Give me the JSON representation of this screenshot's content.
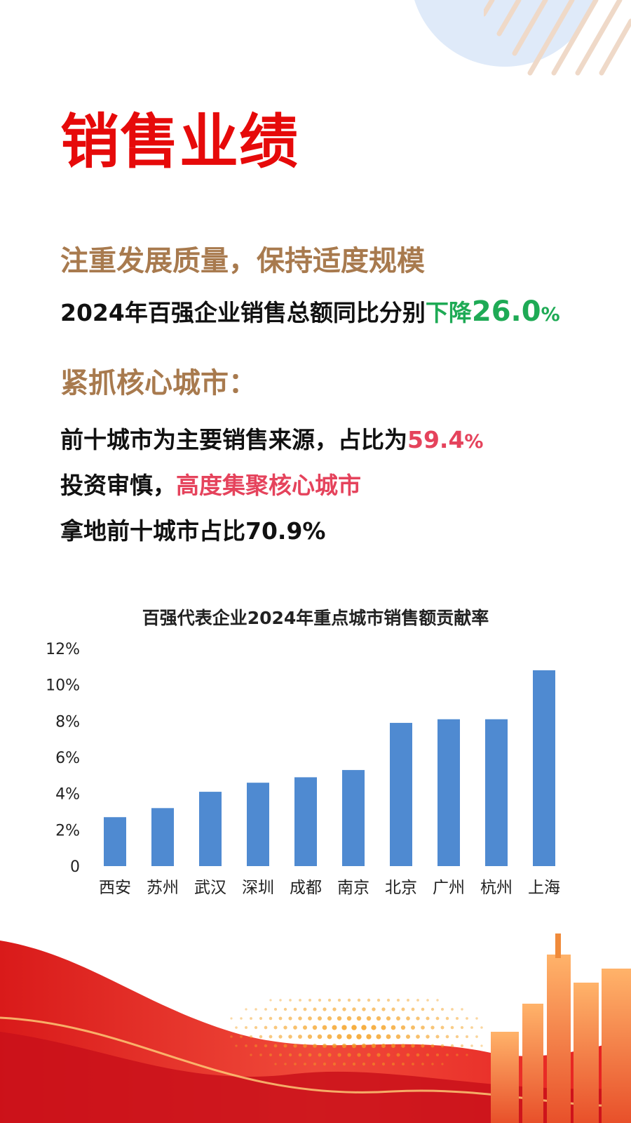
{
  "header": {
    "title": "销售业绩"
  },
  "section1": {
    "heading": "注重发展质量，保持适度规模",
    "line_prefix": "2024年百强企业销售总额同比分别",
    "line_highlight_word": "下降",
    "line_highlight_number": "26.0",
    "line_highlight_pct": "%"
  },
  "section2": {
    "heading": "紧抓核心城市：",
    "line1_prefix": "前十城市为主要销售来源，占比为",
    "line1_number": "59.4",
    "line1_pct": "%",
    "line2_prefix": "投资审慎，",
    "line2_highlight": "高度集聚核心城市",
    "line3": "拿地前十城市占比70.9%"
  },
  "colors": {
    "title_red": "#e60a0a",
    "heading_brown": "#a87a4e",
    "highlight_green": "#1eaa55",
    "highlight_red": "#e5435c",
    "bar_blue": "#4f8ad1"
  },
  "chart_data": {
    "type": "bar",
    "title": "百强代表企业2024年重点城市销售额贡献率",
    "categories": [
      "西安",
      "苏州",
      "武汉",
      "深圳",
      "成都",
      "南京",
      "北京",
      "广州",
      "杭州",
      "上海"
    ],
    "values": [
      2.7,
      3.2,
      4.1,
      4.6,
      4.9,
      5.3,
      7.9,
      8.1,
      8.1,
      10.8
    ],
    "ylim": [
      0,
      12
    ],
    "yticks": [
      "0",
      "2%",
      "4%",
      "6%",
      "8%",
      "10%",
      "12%"
    ],
    "xlabel": "",
    "ylabel": "",
    "grid": false,
    "legend": "none"
  }
}
